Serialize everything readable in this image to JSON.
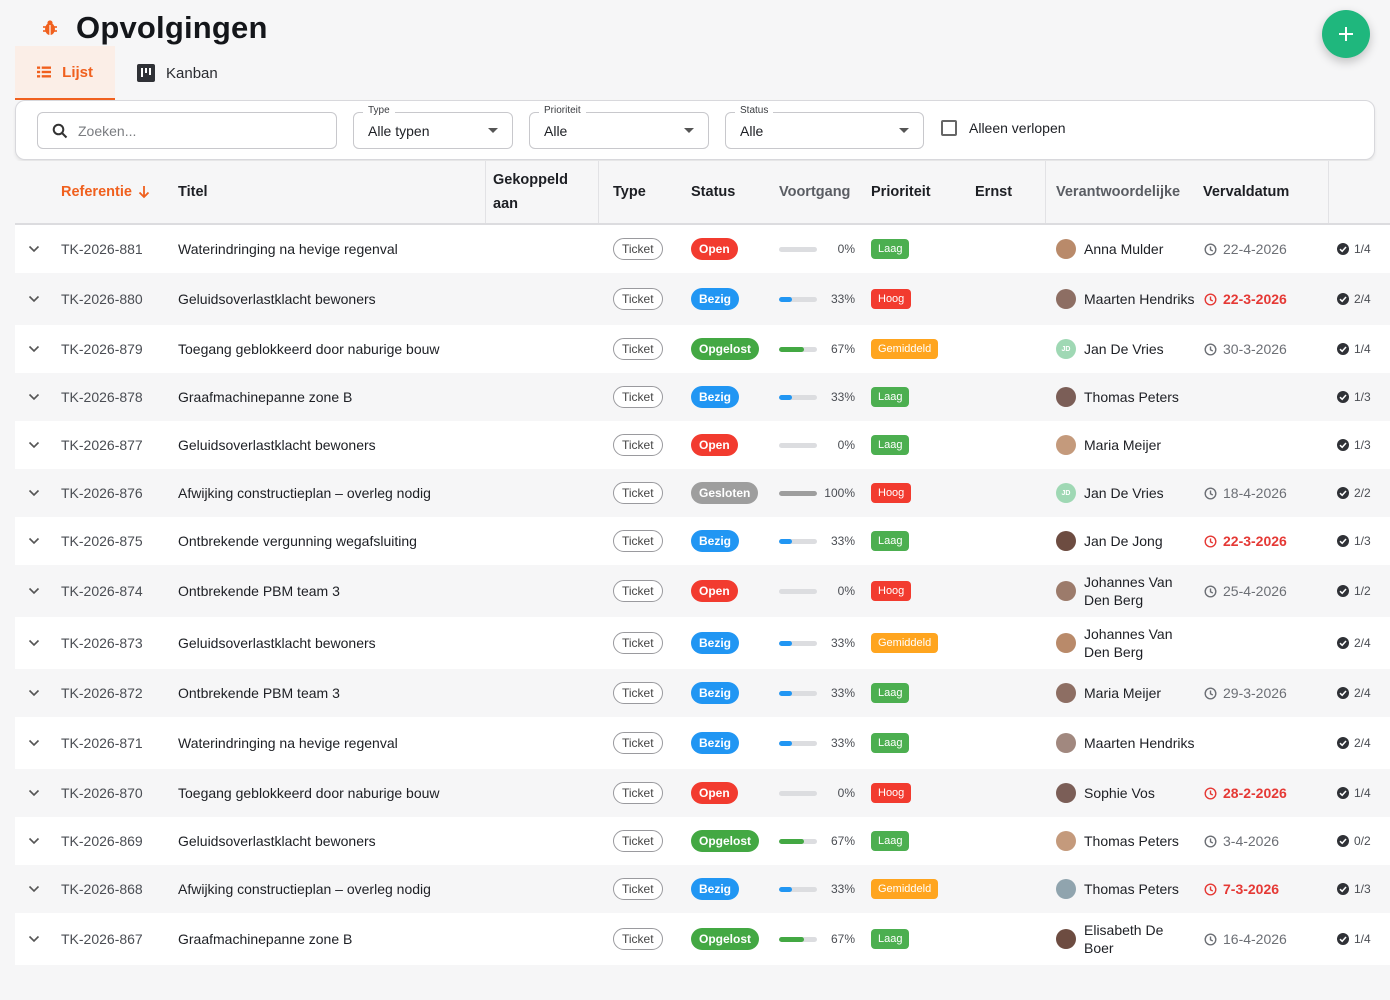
{
  "page": {
    "title": "Opvolgingen"
  },
  "tabs": [
    {
      "label": "Lijst",
      "icon": "list-icon",
      "active": true
    },
    {
      "label": "Kanban",
      "icon": "kanban-icon",
      "active": false
    }
  ],
  "filters": {
    "search_placeholder": "Zoeken...",
    "type": {
      "label": "Type",
      "value": "Alle typen"
    },
    "priority": {
      "label": "Prioriteit",
      "value": "Alle"
    },
    "status": {
      "label": "Status",
      "value": "Alle"
    },
    "overdue_only": {
      "label": "Alleen verlopen",
      "checked": false
    }
  },
  "columns": {
    "reference": "Referentie",
    "title": "Titel",
    "linked": "Gekoppeld aan",
    "type": "Type",
    "status": "Status",
    "progress": "Voortgang",
    "priority": "Prioriteit",
    "severity": "Ernst",
    "owner": "Verantwoordelijke",
    "due": "Vervaldatum"
  },
  "colors": {
    "accent": "#f0601e",
    "fab": "#1fb77d",
    "status": {
      "Open": "#f23b2f",
      "Bezig": "#2196f3",
      "Opgelost": "#43a843",
      "Gesloten": "#9e9e9e"
    },
    "priority": {
      "Laag": "#4caf50",
      "Hoog": "#f23b2f",
      "Gemiddeld": "#ffa51f"
    }
  },
  "rows": [
    {
      "ref": "TK-2026-881",
      "title": "Waterindringing na hevige regenval",
      "type": "Ticket",
      "status": "Open",
      "progress": 0,
      "progress_label": "0%",
      "priority": "Laag",
      "owner": "Anna Mulder",
      "avatar": "photo",
      "due": "22-4-2026",
      "overdue": false,
      "checks": "1/4"
    },
    {
      "ref": "TK-2026-880",
      "title": "Geluidsoverlastklacht bewoners",
      "type": "Ticket",
      "status": "Bezig",
      "progress": 33,
      "progress_label": "33%",
      "priority": "Hoog",
      "owner": "Maarten Hendriks",
      "avatar": "photo",
      "due": "22-3-2026",
      "overdue": true,
      "checks": "2/4"
    },
    {
      "ref": "TK-2026-879",
      "title": "Toegang geblokkeerd door naburige bouw",
      "type": "Ticket",
      "status": "Opgelost",
      "progress": 67,
      "progress_label": "67%",
      "priority": "Gemiddeld",
      "owner": "Jan De Vries",
      "avatar": "JD",
      "due": "30-3-2026",
      "overdue": false,
      "checks": "1/4"
    },
    {
      "ref": "TK-2026-878",
      "title": "Graafmachinepanne zone B",
      "type": "Ticket",
      "status": "Bezig",
      "progress": 33,
      "progress_label": "33%",
      "priority": "Laag",
      "owner": "Thomas Peters",
      "avatar": "photo",
      "due": "",
      "overdue": false,
      "checks": "1/3"
    },
    {
      "ref": "TK-2026-877",
      "title": "Geluidsoverlastklacht bewoners",
      "type": "Ticket",
      "status": "Open",
      "progress": 0,
      "progress_label": "0%",
      "priority": "Laag",
      "owner": "Maria Meijer",
      "avatar": "photo",
      "due": "",
      "overdue": false,
      "checks": "1/3"
    },
    {
      "ref": "TK-2026-876",
      "title": "Afwijking constructieplan – overleg nodig",
      "type": "Ticket",
      "status": "Gesloten",
      "progress": 100,
      "progress_label": "100%",
      "priority": "Hoog",
      "owner": "Jan De Vries",
      "avatar": "JD",
      "due": "18-4-2026",
      "overdue": false,
      "checks": "2/2"
    },
    {
      "ref": "TK-2026-875",
      "title": "Ontbrekende vergunning wegafsluiting",
      "type": "Ticket",
      "status": "Bezig",
      "progress": 33,
      "progress_label": "33%",
      "priority": "Laag",
      "owner": "Jan De Jong",
      "avatar": "photo",
      "due": "22-3-2026",
      "overdue": true,
      "checks": "1/3"
    },
    {
      "ref": "TK-2026-874",
      "title": "Ontbrekende PBM team 3",
      "type": "Ticket",
      "status": "Open",
      "progress": 0,
      "progress_label": "0%",
      "priority": "Hoog",
      "owner": "Johannes Van Den Berg",
      "avatar": "photo",
      "due": "25-4-2026",
      "overdue": false,
      "checks": "1/2"
    },
    {
      "ref": "TK-2026-873",
      "title": "Geluidsoverlastklacht bewoners",
      "type": "Ticket",
      "status": "Bezig",
      "progress": 33,
      "progress_label": "33%",
      "priority": "Gemiddeld",
      "owner": "Johannes Van Den Berg",
      "avatar": "photo",
      "due": "",
      "overdue": false,
      "checks": "2/4"
    },
    {
      "ref": "TK-2026-872",
      "title": "Ontbrekende PBM team 3",
      "type": "Ticket",
      "status": "Bezig",
      "progress": 33,
      "progress_label": "33%",
      "priority": "Laag",
      "owner": "Maria Meijer",
      "avatar": "photo",
      "due": "29-3-2026",
      "overdue": false,
      "checks": "2/4"
    },
    {
      "ref": "TK-2026-871",
      "title": "Waterindringing na hevige regenval",
      "type": "Ticket",
      "status": "Bezig",
      "progress": 33,
      "progress_label": "33%",
      "priority": "Laag",
      "owner": "Maarten Hendriks",
      "avatar": "photo",
      "due": "",
      "overdue": false,
      "checks": "2/4"
    },
    {
      "ref": "TK-2026-870",
      "title": "Toegang geblokkeerd door naburige bouw",
      "type": "Ticket",
      "status": "Open",
      "progress": 0,
      "progress_label": "0%",
      "priority": "Hoog",
      "owner": "Sophie Vos",
      "avatar": "photo",
      "due": "28-2-2026",
      "overdue": true,
      "checks": "1/4"
    },
    {
      "ref": "TK-2026-869",
      "title": "Geluidsoverlastklacht bewoners",
      "type": "Ticket",
      "status": "Opgelost",
      "progress": 67,
      "progress_label": "67%",
      "priority": "Laag",
      "owner": "Thomas Peters",
      "avatar": "photo",
      "due": "3-4-2026",
      "overdue": false,
      "checks": "0/2"
    },
    {
      "ref": "TK-2026-868",
      "title": "Afwijking constructieplan – overleg nodig",
      "type": "Ticket",
      "status": "Bezig",
      "progress": 33,
      "progress_label": "33%",
      "priority": "Gemiddeld",
      "owner": "Thomas Peters",
      "avatar": "photo",
      "due": "7-3-2026",
      "overdue": true,
      "checks": "1/3"
    },
    {
      "ref": "TK-2026-867",
      "title": "Graafmachinepanne zone B",
      "type": "Ticket",
      "status": "Opgelost",
      "progress": 67,
      "progress_label": "67%",
      "priority": "Laag",
      "owner": "Elisabeth De Boer",
      "avatar": "photo",
      "due": "16-4-2026",
      "overdue": false,
      "checks": "1/4"
    }
  ]
}
